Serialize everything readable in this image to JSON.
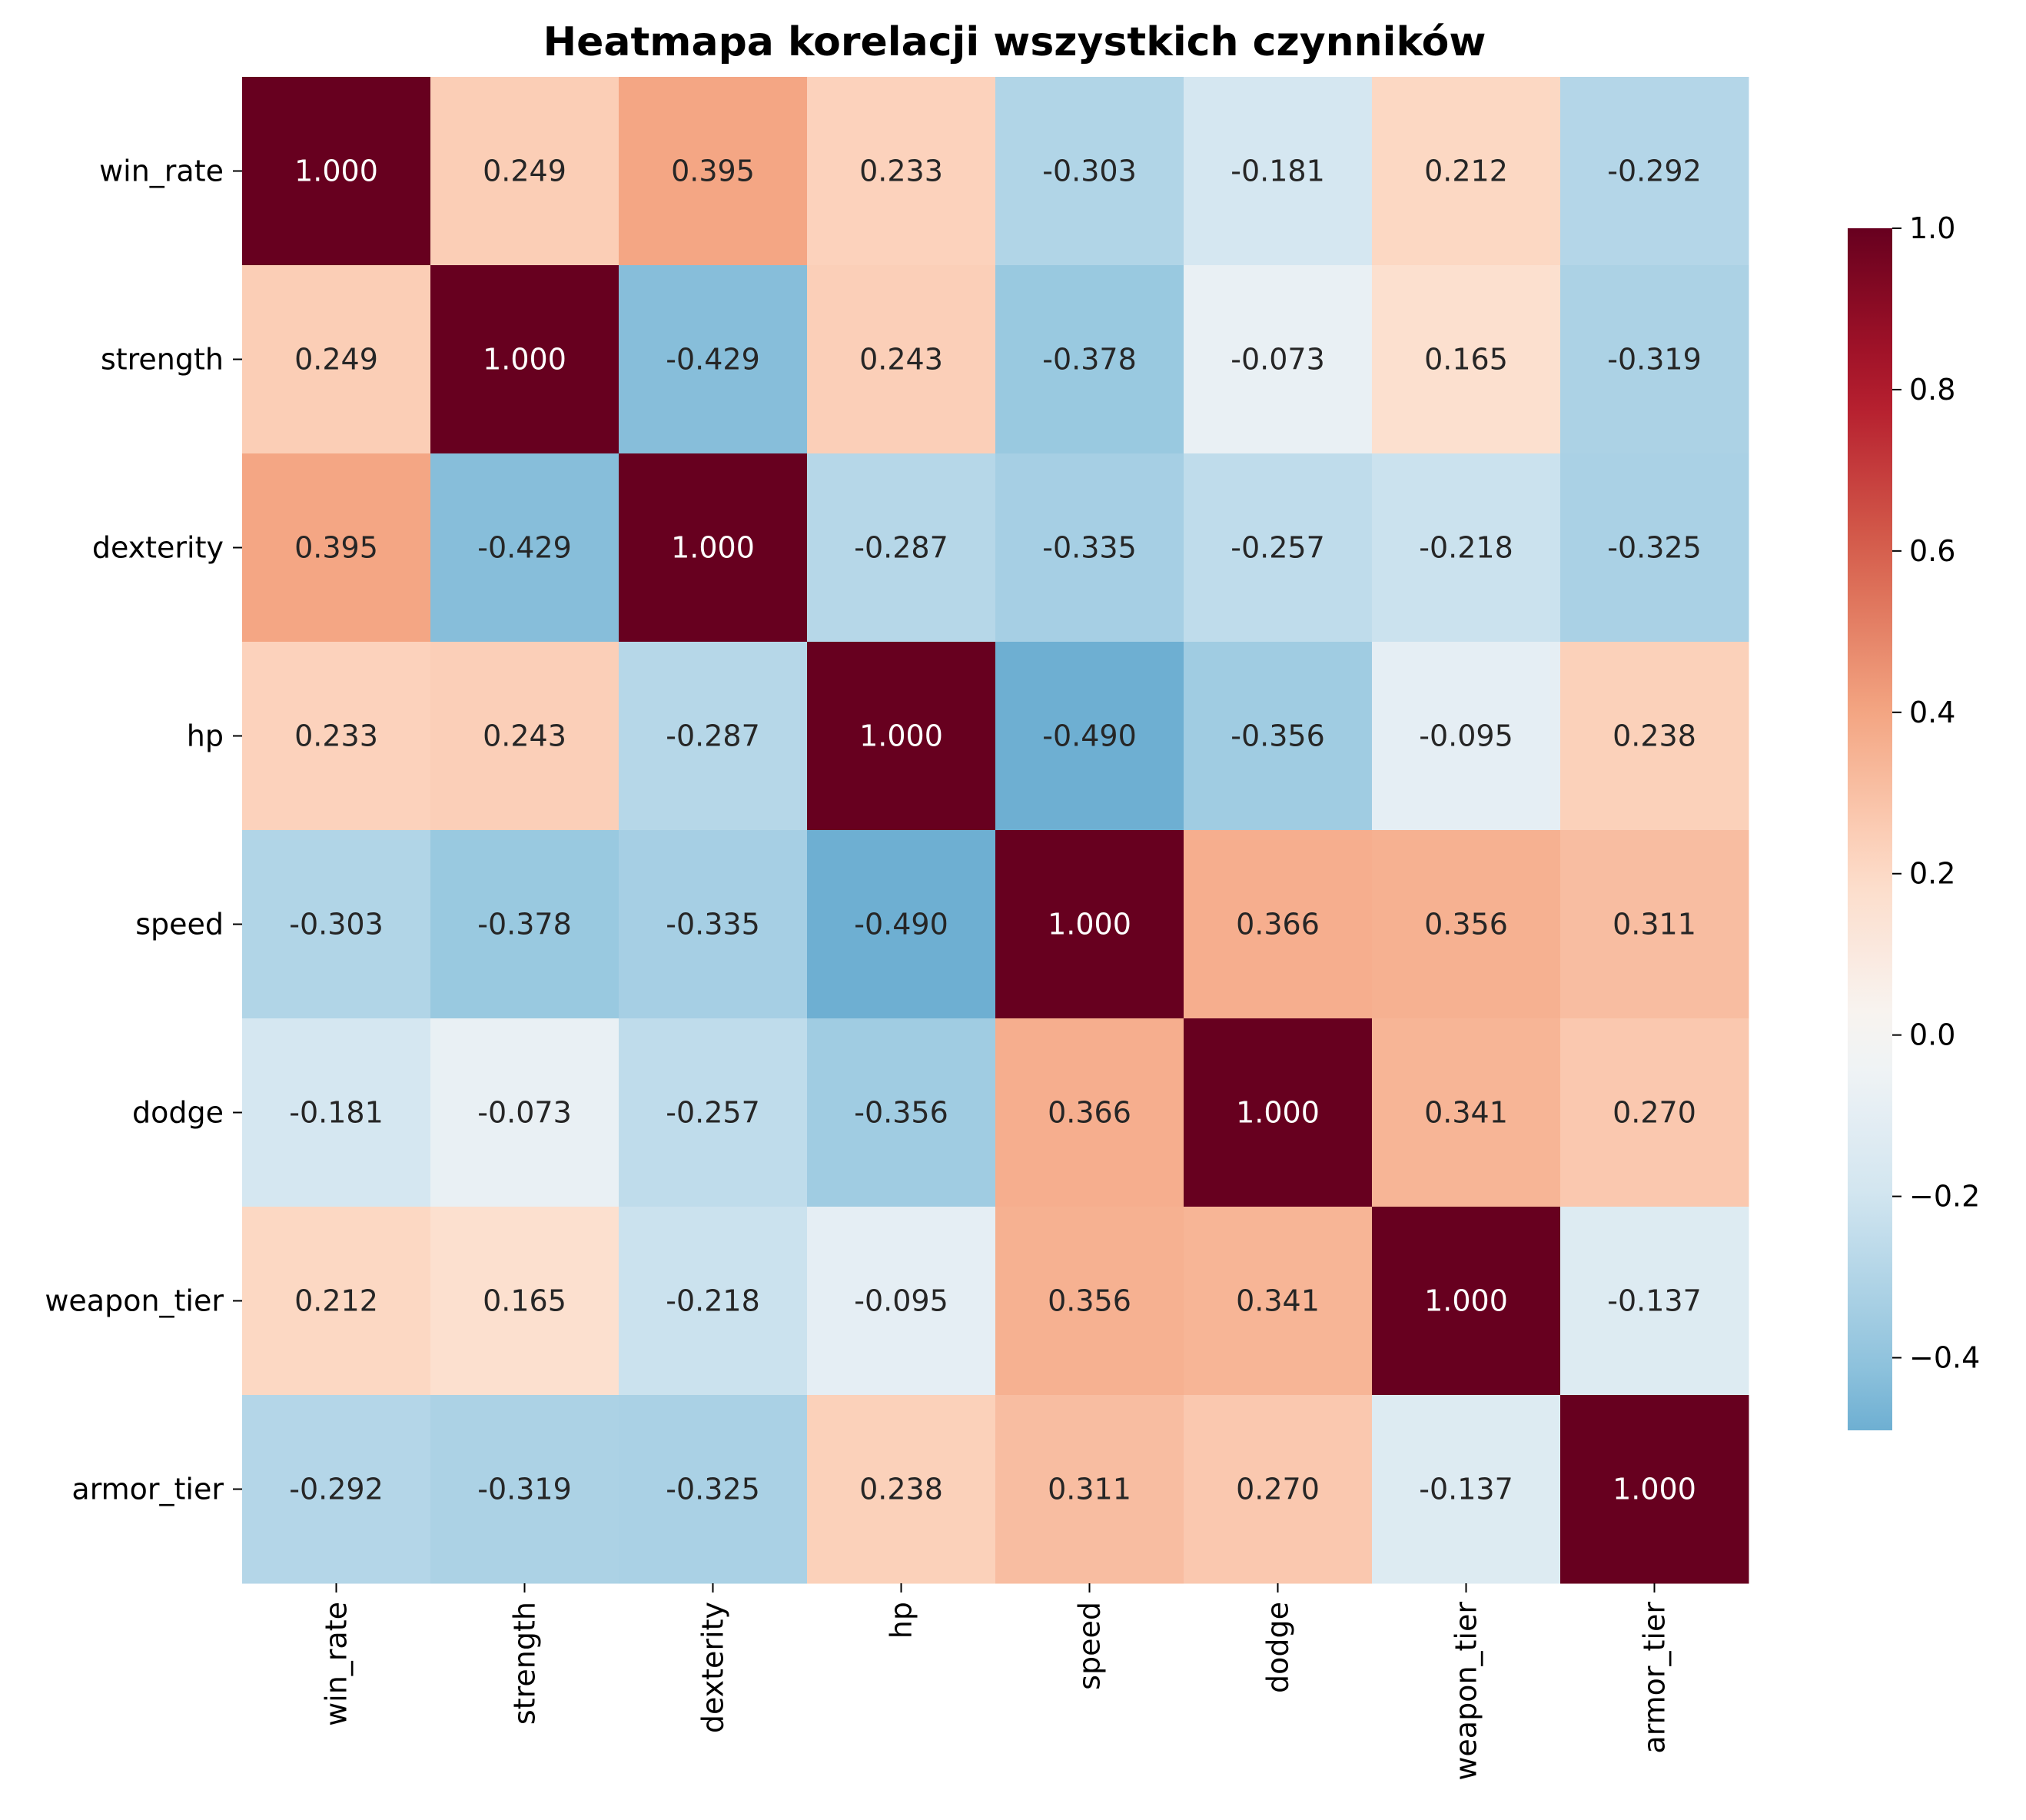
{
  "chart_data": {
    "type": "heatmap",
    "title": "Heatmapa korelacji wszystkich czynników",
    "xlabel": "",
    "ylabel": "",
    "x_categories": [
      "win_rate",
      "strength",
      "dexterity",
      "hp",
      "speed",
      "dodge",
      "weapon_tier",
      "armor_tier"
    ],
    "y_categories": [
      "win_rate",
      "strength",
      "dexterity",
      "hp",
      "speed",
      "dodge",
      "weapon_tier",
      "armor_tier"
    ],
    "values": [
      [
        1.0,
        0.249,
        0.395,
        0.233,
        -0.303,
        -0.181,
        0.212,
        -0.292
      ],
      [
        0.249,
        1.0,
        -0.429,
        0.243,
        -0.378,
        -0.073,
        0.165,
        -0.319
      ],
      [
        0.395,
        -0.429,
        1.0,
        -0.287,
        -0.335,
        -0.257,
        -0.218,
        -0.325
      ],
      [
        0.233,
        0.243,
        -0.287,
        1.0,
        -0.49,
        -0.356,
        -0.095,
        0.238
      ],
      [
        -0.303,
        -0.378,
        -0.335,
        -0.49,
        1.0,
        0.366,
        0.356,
        0.311
      ],
      [
        -0.181,
        -0.073,
        -0.257,
        -0.356,
        0.366,
        1.0,
        0.341,
        0.27
      ],
      [
        0.212,
        0.165,
        -0.218,
        -0.095,
        0.356,
        0.341,
        1.0,
        -0.137
      ],
      [
        -0.292,
        -0.319,
        -0.325,
        0.238,
        0.311,
        0.27,
        -0.137,
        1.0
      ]
    ],
    "value_format": "0.000",
    "colormap": "RdBu_r",
    "colorbar": {
      "range": [
        -0.49,
        1.0
      ],
      "center": 0.0,
      "ticks": [
        1.0,
        0.8,
        0.6,
        0.4,
        0.2,
        0.0,
        -0.2,
        -0.4
      ],
      "tick_labels": [
        "1.0",
        "0.8",
        "0.6",
        "0.4",
        "0.2",
        "0.0",
        "−0.2",
        "−0.4"
      ]
    },
    "grid": false,
    "legend": "colorbar-right"
  }
}
